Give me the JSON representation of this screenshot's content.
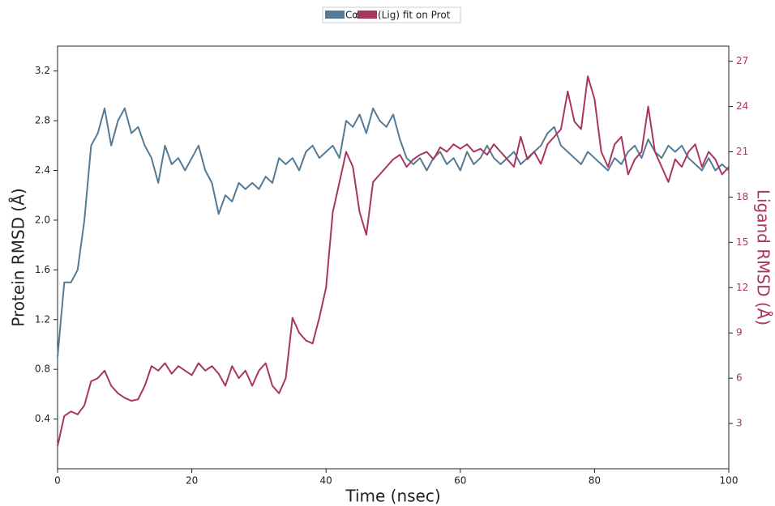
{
  "chart_data": {
    "type": "line",
    "xlabel": "Time (nsec)",
    "ylabel": "Protein RMSD (Å)",
    "y2label": "Ligand RMSD (Å)",
    "x": [
      0,
      1,
      2,
      3,
      4,
      5,
      6,
      7,
      8,
      9,
      10,
      11,
      12,
      13,
      14,
      15,
      16,
      17,
      18,
      19,
      20,
      21,
      22,
      23,
      24,
      25,
      26,
      27,
      28,
      29,
      30,
      31,
      32,
      33,
      34,
      35,
      36,
      37,
      38,
      39,
      40,
      41,
      42,
      43,
      44,
      45,
      46,
      47,
      48,
      49,
      50,
      51,
      52,
      53,
      54,
      55,
      56,
      57,
      58,
      59,
      60,
      61,
      62,
      63,
      64,
      65,
      66,
      67,
      68,
      69,
      70,
      71,
      72,
      73,
      74,
      75,
      76,
      77,
      78,
      79,
      80,
      81,
      82,
      83,
      84,
      85,
      86,
      87,
      88,
      89,
      90,
      91,
      92,
      93,
      94,
      95,
      96,
      97,
      98,
      99,
      100
    ],
    "series": [
      {
        "name": "Cα",
        "color": "#547a96",
        "axis": "y",
        "values": [
          0.9,
          1.5,
          1.5,
          1.6,
          2.0,
          2.6,
          2.7,
          2.9,
          2.6,
          2.8,
          2.9,
          2.7,
          2.75,
          2.6,
          2.5,
          2.3,
          2.6,
          2.45,
          2.5,
          2.4,
          2.5,
          2.6,
          2.4,
          2.3,
          2.05,
          2.2,
          2.15,
          2.3,
          2.25,
          2.3,
          2.25,
          2.35,
          2.3,
          2.5,
          2.45,
          2.5,
          2.4,
          2.55,
          2.6,
          2.5,
          2.55,
          2.6,
          2.5,
          2.8,
          2.75,
          2.85,
          2.7,
          2.9,
          2.8,
          2.75,
          2.85,
          2.65,
          2.5,
          2.45,
          2.5,
          2.4,
          2.5,
          2.55,
          2.45,
          2.5,
          2.4,
          2.55,
          2.45,
          2.5,
          2.6,
          2.5,
          2.45,
          2.5,
          2.55,
          2.45,
          2.5,
          2.55,
          2.6,
          2.7,
          2.75,
          2.6,
          2.55,
          2.5,
          2.45,
          2.55,
          2.5,
          2.45,
          2.4,
          2.5,
          2.45,
          2.55,
          2.6,
          2.5,
          2.65,
          2.55,
          2.5,
          2.6,
          2.55,
          2.6,
          2.5,
          2.45,
          2.4,
          2.5,
          2.4,
          2.45,
          2.4
        ]
      },
      {
        "name": "(Lig) fit on Prot",
        "color": "#a8365e",
        "axis": "y2",
        "values": [
          1.5,
          3.5,
          3.8,
          3.6,
          4.2,
          5.8,
          6,
          6.5,
          5.5,
          5,
          4.7,
          4.5,
          4.6,
          5.5,
          6.8,
          6.5,
          7,
          6.3,
          6.8,
          6.5,
          6.2,
          7,
          6.5,
          6.8,
          6.3,
          5.5,
          6.8,
          6,
          6.5,
          5.5,
          6.5,
          7,
          5.5,
          5,
          6,
          10,
          9,
          8.5,
          8.3,
          10,
          12,
          17,
          19,
          21,
          20,
          17,
          15.5,
          19,
          19.5,
          20,
          20.5,
          20.8,
          20,
          20.5,
          20.8,
          21,
          20.5,
          21.3,
          21,
          21.5,
          21.2,
          21.5,
          21,
          21.2,
          20.8,
          21.5,
          21,
          20.5,
          20,
          22,
          20.5,
          21,
          20.2,
          21.5,
          22,
          22.5,
          25,
          23,
          22.5,
          26,
          24.5,
          21,
          20,
          21.5,
          22,
          19.5,
          20.5,
          21,
          24,
          21,
          20,
          19,
          20.5,
          20,
          21,
          21.5,
          20,
          21,
          20.5,
          19.5,
          20
        ]
      }
    ],
    "xlim": [
      0,
      100
    ],
    "xticks": [
      0,
      20,
      40,
      60,
      80,
      100
    ],
    "ylim": [
      0,
      3.4
    ],
    "yticks": [
      0.4,
      0.8,
      1.2,
      1.6,
      {
        "value": 2,
        "label": "2.0"
      },
      2.4,
      2.8,
      3.2
    ],
    "y2lim": [
      0,
      28
    ],
    "y2ticks": [
      3,
      6,
      9,
      12,
      15,
      18,
      21,
      24,
      27
    ],
    "legend": "upper center",
    "grid": false
  }
}
